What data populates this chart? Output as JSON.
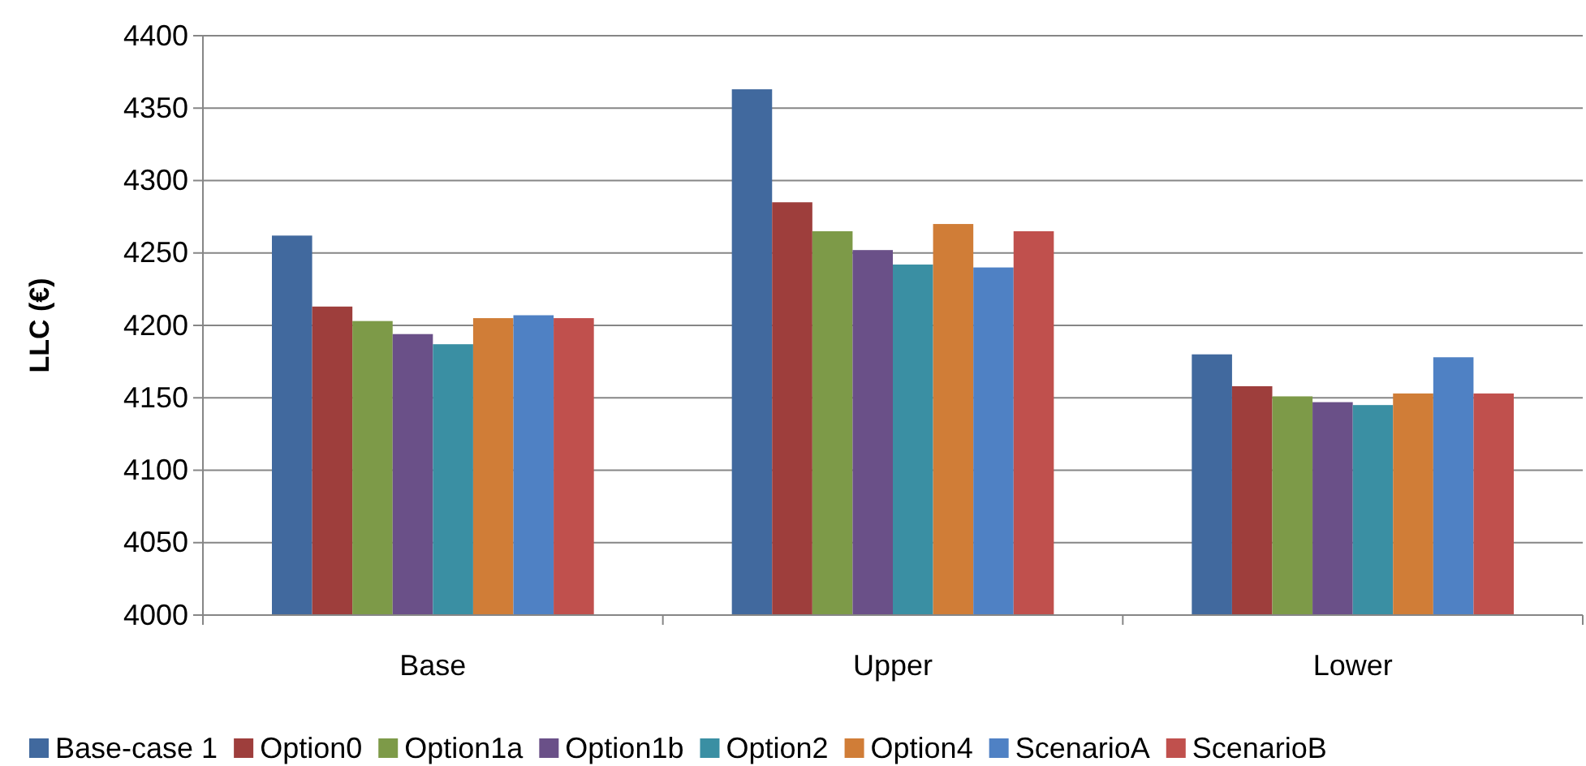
{
  "chart_data": {
    "type": "bar",
    "ylabel": "LLC (€)",
    "categories": [
      "Base",
      "Upper",
      "Lower"
    ],
    "series": [
      {
        "name": "Base-case 1",
        "color": "#41699e",
        "values": [
          4262,
          4363,
          4180
        ]
      },
      {
        "name": "Option0",
        "color": "#9e3e3c",
        "values": [
          4213,
          4285,
          4158
        ]
      },
      {
        "name": "Option1a",
        "color": "#7d9a48",
        "values": [
          4203,
          4265,
          4151
        ]
      },
      {
        "name": "Option1b",
        "color": "#6a5088",
        "values": [
          4194,
          4252,
          4147
        ]
      },
      {
        "name": "Option2",
        "color": "#3a8fa3",
        "values": [
          4187,
          4242,
          4145
        ]
      },
      {
        "name": "Option4",
        "color": "#d07d37",
        "values": [
          4205,
          4270,
          4153
        ]
      },
      {
        "name": "ScenarioA",
        "color": "#4f81c4",
        "values": [
          4207,
          4240,
          4178
        ]
      },
      {
        "name": "ScenarioB",
        "color": "#c0504d",
        "values": [
          4205,
          4265,
          4153
        ]
      }
    ],
    "ylim": [
      4000,
      4400
    ],
    "yticks": [
      4000,
      4050,
      4100,
      4150,
      4200,
      4250,
      4300,
      4350,
      4400
    ],
    "grid": "y",
    "legend": "bottom"
  }
}
